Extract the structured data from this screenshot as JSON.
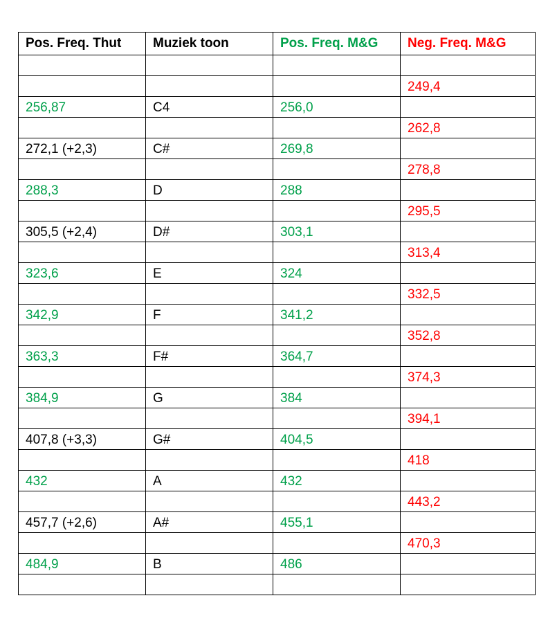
{
  "colors": {
    "green": "#00a04a",
    "red": "#ff0000",
    "black": "#000000"
  },
  "header": {
    "col1": "Pos. Freq. Thut",
    "col2": "Muziek toon",
    "col3": "Pos. Freq. M&G",
    "col4": "Neg. Freq. M&G"
  },
  "rows": [
    {
      "thut": "",
      "tone": "",
      "pos": "",
      "neg": "",
      "thut_color": "black"
    },
    {
      "thut": "",
      "tone": "",
      "pos": "",
      "neg": "249,4",
      "thut_color": "black"
    },
    {
      "thut": "256,87",
      "tone": "C4",
      "pos": "256,0",
      "neg": "",
      "thut_color": "green"
    },
    {
      "thut": "",
      "tone": "",
      "pos": "",
      "neg": "262,8",
      "thut_color": "black"
    },
    {
      "thut": "272,1 (+2,3)",
      "tone": "C#",
      "pos": "269,8",
      "neg": "",
      "thut_color": "black"
    },
    {
      "thut": "",
      "tone": "",
      "pos": "",
      "neg": "278,8",
      "thut_color": "black"
    },
    {
      "thut": "288,3",
      "tone": "D",
      "pos": "288",
      "neg": "",
      "thut_color": "green"
    },
    {
      "thut": "",
      "tone": "",
      "pos": "",
      "neg": "295,5",
      "thut_color": "black"
    },
    {
      "thut": "305,5 (+2,4)",
      "tone": "D#",
      "pos": "303,1",
      "neg": "",
      "thut_color": "black"
    },
    {
      "thut": "",
      "tone": "",
      "pos": "",
      "neg": "313,4",
      "thut_color": "black"
    },
    {
      "thut": "323,6",
      "tone": "E",
      "pos": "324",
      "neg": "",
      "thut_color": "green"
    },
    {
      "thut": "",
      "tone": "",
      "pos": "",
      "neg": "332,5",
      "thut_color": "black"
    },
    {
      "thut": "342,9",
      "tone": "F",
      "pos": "341,2",
      "neg": "",
      "thut_color": "green"
    },
    {
      "thut": "",
      "tone": "",
      "pos": "",
      "neg": "352,8",
      "thut_color": "black"
    },
    {
      "thut": "363,3",
      "tone": "F#",
      "pos": "364,7",
      "neg": "",
      "thut_color": "green"
    },
    {
      "thut": "",
      "tone": "",
      "pos": "",
      "neg": "374,3",
      "thut_color": "black"
    },
    {
      "thut": "384,9",
      "tone": "G",
      "pos": "384",
      "neg": "",
      "thut_color": "green"
    },
    {
      "thut": "",
      "tone": "",
      "pos": "",
      "neg": "394,1",
      "thut_color": "black"
    },
    {
      "thut": "407,8 (+3,3)",
      "tone": "G#",
      "pos": "404,5",
      "neg": "",
      "thut_color": "black"
    },
    {
      "thut": "",
      "tone": "",
      "pos": "",
      "neg": "418",
      "thut_color": "black"
    },
    {
      "thut": "432",
      "tone": "A",
      "pos": "432",
      "neg": "",
      "thut_color": "green"
    },
    {
      "thut": "",
      "tone": "",
      "pos": "",
      "neg": "443,2",
      "thut_color": "black"
    },
    {
      "thut": "457,7 (+2,6)",
      "tone": "A#",
      "pos": "455,1",
      "neg": "",
      "thut_color": "black"
    },
    {
      "thut": "",
      "tone": "",
      "pos": "",
      "neg": "470,3",
      "thut_color": "black"
    },
    {
      "thut": "484,9",
      "tone": "B",
      "pos": "486",
      "neg": "",
      "thut_color": "green"
    },
    {
      "thut": "",
      "tone": "",
      "pos": "",
      "neg": "",
      "thut_color": "black"
    }
  ]
}
